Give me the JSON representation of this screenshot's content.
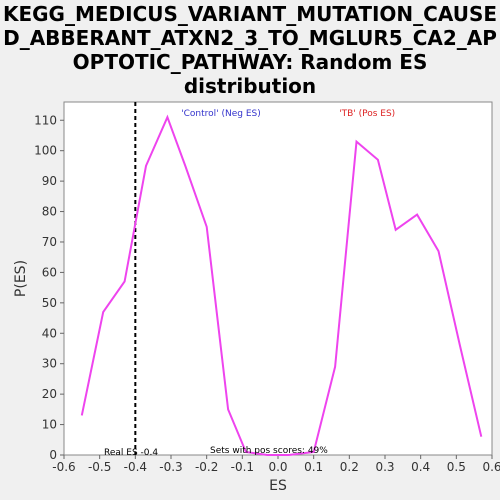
{
  "chart_data": {
    "type": "line",
    "title_lines": [
      "KEGG_MEDICUS_VARIANT_MUTATION_CAUSE",
      "D_ABBERANT_ATXN2_3_TO_MGLUR5_CA2_AP",
      "OPTOTIC_PATHWAY: Random ES",
      "distribution"
    ],
    "xlabel": "ES",
    "ylabel": "P(ES)",
    "xlim": [
      -0.6,
      0.6
    ],
    "ylim": [
      0,
      116
    ],
    "x_ticks": [
      -0.6,
      -0.5,
      -0.4,
      -0.3,
      -0.2,
      -0.1,
      0.0,
      0.1,
      0.2,
      0.3,
      0.4,
      0.5,
      0.6
    ],
    "x_tick_labels": [
      "-0.6",
      "-0.5",
      "-0.4",
      "-0.3",
      "-0.2",
      "-0.1",
      "0.0",
      "0.1",
      "0.2",
      "0.3",
      "0.4",
      "0.5",
      "0.6"
    ],
    "y_ticks": [
      0,
      10,
      20,
      30,
      40,
      50,
      60,
      70,
      80,
      90,
      100,
      110
    ],
    "y_tick_labels": [
      "0",
      "10",
      "20",
      "30",
      "40",
      "50",
      "60",
      "70",
      "80",
      "90",
      "100",
      "110"
    ],
    "grid": false,
    "line_color": "#ee44ee",
    "series": [
      {
        "x": [
          -0.55,
          -0.49,
          -0.43,
          -0.37,
          -0.31,
          -0.26,
          -0.2,
          -0.14,
          -0.09,
          -0.03,
          0.03,
          0.1,
          0.16,
          0.22,
          0.28,
          0.33,
          0.39,
          0.45,
          0.51,
          0.57
        ],
        "y": [
          13,
          47,
          57,
          95,
          111,
          95,
          75,
          15,
          1,
          0,
          0,
          1,
          29,
          103,
          97,
          74,
          79,
          67,
          36,
          6
        ]
      }
    ],
    "real_es": -0.4,
    "annotations": {
      "neg_label": "'Control' (Neg ES)",
      "neg_color": "#3333cc",
      "pos_label": "'TB' (Pos ES)",
      "pos_color": "#dd2222",
      "real_es_label": "Real ES -0.4",
      "pos_scores_label": "Sets with pos scores: 49%"
    }
  }
}
